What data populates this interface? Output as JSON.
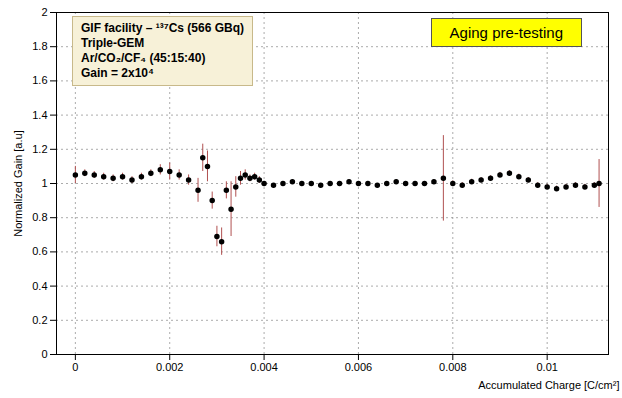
{
  "chart_data": {
    "type": "scatter",
    "title": "Aging pre-testing",
    "annotations": [
      "GIF facility – ¹³⁷Cs (566 GBq)",
      "Triple-GEM",
      "Ar/CO₂/CF₄ (45:15:40)",
      "Gain = 2x10⁴"
    ],
    "x_label": "Accumulated Charge [C/cm²]",
    "y_label": "Normalized Gain [a.u]",
    "x": [
      0,
      0.0002,
      0.0004,
      0.0006,
      0.0008,
      0.001,
      0.0012,
      0.0014,
      0.0016,
      0.0018,
      0.002,
      0.0022,
      0.0024,
      0.0026,
      0.0027,
      0.0028,
      0.0029,
      0.003,
      0.0031,
      0.0032,
      0.0033,
      0.0034,
      0.0035,
      0.0036,
      0.0037,
      0.0038,
      0.0039,
      0.004,
      0.0042,
      0.0044,
      0.0046,
      0.0048,
      0.005,
      0.0052,
      0.0054,
      0.0056,
      0.0058,
      0.006,
      0.0062,
      0.0064,
      0.0066,
      0.0068,
      0.007,
      0.0072,
      0.0074,
      0.0076,
      0.0078,
      0.008,
      0.0082,
      0.0084,
      0.0086,
      0.0088,
      0.009,
      0.0092,
      0.0094,
      0.0096,
      0.0098,
      0.01,
      0.0102,
      0.0104,
      0.0106,
      0.0108,
      0.011,
      0.0111
    ],
    "values": [
      1.05,
      1.06,
      1.05,
      1.04,
      1.03,
      1.04,
      1.02,
      1.04,
      1.06,
      1.08,
      1.07,
      1.05,
      1.02,
      0.96,
      1.15,
      1.1,
      0.9,
      0.69,
      0.66,
      0.96,
      0.85,
      0.98,
      1.03,
      1.05,
      1.03,
      1.04,
      1.02,
      1,
      0.99,
      1,
      1.01,
      1,
      1,
      0.99,
      1,
      1,
      1.01,
      1,
      1,
      0.99,
      1,
      1.01,
      1,
      1,
      1,
      1.01,
      1.03,
      1,
      0.99,
      1.01,
      1.02,
      1.03,
      1.05,
      1.06,
      1.04,
      1.02,
      0.99,
      0.98,
      0.97,
      0.98,
      0.99,
      0.98,
      0.99,
      1
    ],
    "errors": [
      0.05,
      0.02,
      0.02,
      0.02,
      0.02,
      0.02,
      0.02,
      0.02,
      0.02,
      0.03,
      0.05,
      0.03,
      0.03,
      0.07,
      0.08,
      0.09,
      0.05,
      0.06,
      0.08,
      0.05,
      0.16,
      0.06,
      0.04,
      0.03,
      0.02,
      0.02,
      0.02,
      0.01,
      0.01,
      0.01,
      0.01,
      0.01,
      0.01,
      0.01,
      0.01,
      0.01,
      0.01,
      0.01,
      0.01,
      0.01,
      0.01,
      0.01,
      0.01,
      0.01,
      0.01,
      0.01,
      0.25,
      0.015,
      0.015,
      0.015,
      0.015,
      0.015,
      0.015,
      0.015,
      0.015,
      0.015,
      0.015,
      0.015,
      0.015,
      0.015,
      0.015,
      0.015,
      0.015,
      0.14
    ],
    "color": "#000000",
    "marker": "circle",
    "xlim": [
      -0.0004,
      0.0113
    ],
    "xticks": [
      0,
      0.002,
      0.004,
      0.006,
      0.008,
      0.01
    ],
    "ylim": [
      0,
      2
    ],
    "yticks": [
      0,
      0.2,
      0.4,
      0.6,
      0.8,
      1,
      1.2,
      1.4,
      1.6,
      1.8,
      2
    ],
    "grid": true
  }
}
